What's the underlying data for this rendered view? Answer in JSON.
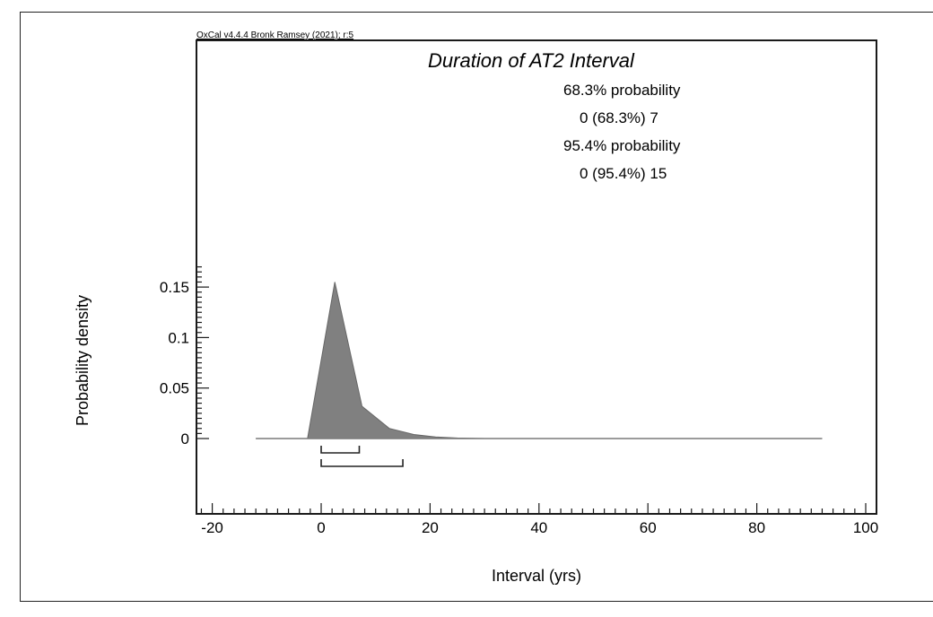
{
  "chart_data": {
    "type": "area",
    "title": "Duration of AT2 Interval",
    "credit": "OxCal v4.4.4 Bronk Ramsey (2021); r:5",
    "xlabel": "Interval (yrs)",
    "ylabel": "Probability density",
    "xlim": [
      -23,
      102
    ],
    "ylim": [
      -0.04,
      0.33
    ],
    "x_ticks": [
      -20,
      0,
      20,
      40,
      60,
      80,
      100
    ],
    "x_tick_labels": [
      "-20",
      "0",
      "20",
      "40",
      "60",
      "80",
      "100"
    ],
    "y_ticks": [
      0,
      0.05,
      0.1,
      0.15
    ],
    "y_tick_labels": [
      "0",
      "0.05",
      "0.1",
      "0.15"
    ],
    "grid": false,
    "series": [
      {
        "name": "Duration of AT2 Interval",
        "x": [
          -12,
          -2.5,
          2.5,
          7.5,
          12.5,
          17,
          21,
          25,
          30,
          92
        ],
        "y": [
          0,
          0,
          0.155,
          0.032,
          0.01,
          0.004,
          0.0015,
          0.0005,
          0,
          0
        ],
        "fill": "#808080"
      }
    ],
    "annotations": [
      {
        "label": "68.3% probability",
        "range_text": "0 (68.3%) 7",
        "from": 0,
        "to": 7
      },
      {
        "label": "95.4% probability",
        "range_text": "0 (95.4%) 15",
        "from": 0,
        "to": 15
      }
    ]
  },
  "texts": {
    "credit": "OxCal v4.4.4 Bronk Ramsey (2021); r:5",
    "title": "Duration of AT2 Interval",
    "p68_label": "68.3% probability",
    "p68_range": "0 (68.3%) 7",
    "p95_label": "95.4% probability",
    "p95_range": "0 (95.4%) 15",
    "xlabel": "Interval (yrs)",
    "ylabel": "Probability density"
  },
  "colors": {
    "fill": "#808080",
    "axis": "#1a1a1a",
    "baseline": "#7a7a7a"
  }
}
